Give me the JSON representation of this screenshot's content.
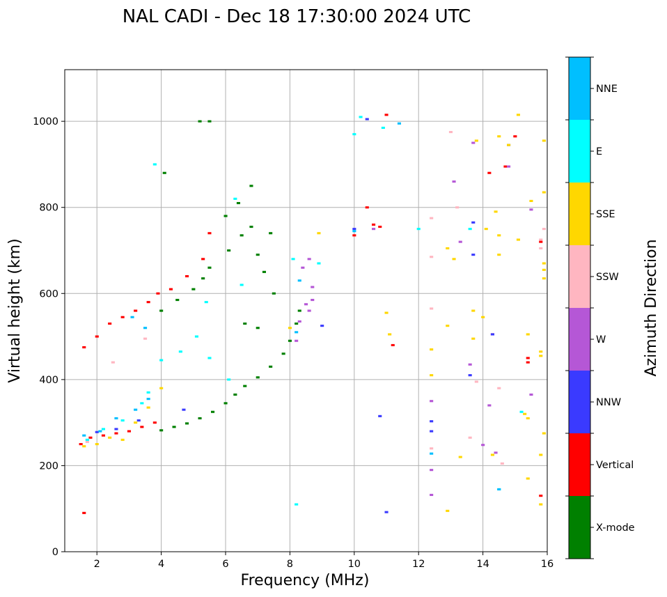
{
  "chart_data": {
    "type": "scatter",
    "title": "NAL CADI - Dec 18 17:30:00 2024 UTC",
    "xlabel": "Frequency (MHz)",
    "ylabel": "Virtual height (km)",
    "xlim": [
      1,
      16
    ],
    "ylim": [
      0,
      1120
    ],
    "xticks": [
      2,
      4,
      6,
      8,
      10,
      12,
      14,
      16
    ],
    "yticks": [
      0,
      200,
      400,
      600,
      800,
      1000
    ],
    "grid": true,
    "colorbar": {
      "label": "Azimuth Direction",
      "categories": [
        {
          "name": "X-mode",
          "color": "#008000"
        },
        {
          "name": "Vertical",
          "color": "#ff0000"
        },
        {
          "name": "NNW",
          "color": "#3a3aff"
        },
        {
          "name": "W",
          "color": "#b557d6"
        },
        {
          "name": "SSW",
          "color": "#ffb6c1"
        },
        {
          "name": "SSE",
          "color": "#ffd700"
        },
        {
          "name": "E",
          "color": "#00ffff"
        },
        {
          "name": "NNE",
          "color": "#00bfff"
        }
      ]
    },
    "series": [
      {
        "name": "X-mode",
        "points": [
          [
            4.0,
            282
          ],
          [
            4.4,
            290
          ],
          [
            4.8,
            298
          ],
          [
            5.2,
            310
          ],
          [
            5.6,
            325
          ],
          [
            6.0,
            345
          ],
          [
            6.3,
            365
          ],
          [
            6.6,
            385
          ],
          [
            7.0,
            405
          ],
          [
            7.4,
            430
          ],
          [
            7.8,
            460
          ],
          [
            8.0,
            490
          ],
          [
            8.2,
            530
          ],
          [
            8.3,
            560
          ],
          [
            4.0,
            560
          ],
          [
            4.5,
            585
          ],
          [
            5.0,
            610
          ],
          [
            5.3,
            635
          ],
          [
            5.5,
            660
          ],
          [
            6.1,
            700
          ],
          [
            6.5,
            735
          ],
          [
            6.8,
            755
          ],
          [
            7.0,
            690
          ],
          [
            7.2,
            650
          ],
          [
            7.5,
            600
          ],
          [
            6.8,
            850
          ],
          [
            6.4,
            810
          ],
          [
            6.0,
            780
          ],
          [
            5.5,
            1000
          ],
          [
            5.2,
            1000
          ],
          [
            4.1,
            880
          ],
          [
            7.4,
            740
          ],
          [
            6.6,
            530
          ],
          [
            7.0,
            520
          ]
        ]
      },
      {
        "name": "Vertical",
        "points": [
          [
            1.6,
            90
          ],
          [
            1.5,
            250
          ],
          [
            1.8,
            265
          ],
          [
            2.2,
            270
          ],
          [
            2.6,
            275
          ],
          [
            3.0,
            280
          ],
          [
            3.4,
            290
          ],
          [
            3.8,
            300
          ],
          [
            1.6,
            475
          ],
          [
            2.0,
            500
          ],
          [
            2.4,
            530
          ],
          [
            2.8,
            545
          ],
          [
            3.2,
            560
          ],
          [
            3.6,
            580
          ],
          [
            3.9,
            600
          ],
          [
            4.3,
            610
          ],
          [
            4.8,
            640
          ],
          [
            5.3,
            680
          ],
          [
            5.5,
            740
          ],
          [
            10.8,
            755
          ],
          [
            10.4,
            800
          ],
          [
            10.6,
            760
          ],
          [
            11.0,
            1015
          ],
          [
            11.2,
            480
          ],
          [
            14.3,
            505
          ],
          [
            14.2,
            880
          ],
          [
            14.7,
            895
          ],
          [
            15.0,
            965
          ],
          [
            15.4,
            440
          ],
          [
            15.4,
            450
          ],
          [
            15.8,
            130
          ],
          [
            15.8,
            720
          ],
          [
            10.0,
            735
          ]
        ]
      },
      {
        "name": "NNW",
        "points": [
          [
            2.0,
            278
          ],
          [
            2.6,
            285
          ],
          [
            3.3,
            305
          ],
          [
            4.7,
            330
          ],
          [
            9.0,
            525
          ],
          [
            10.0,
            750
          ],
          [
            10.4,
            1005
          ],
          [
            10.8,
            315
          ],
          [
            11.0,
            92
          ],
          [
            12.4,
            280
          ],
          [
            12.4,
            303
          ],
          [
            13.6,
            410
          ],
          [
            13.7,
            690
          ],
          [
            13.7,
            765
          ],
          [
            14.3,
            505
          ],
          [
            14.8,
            945
          ]
        ]
      },
      {
        "name": "W",
        "points": [
          [
            8.2,
            490
          ],
          [
            8.3,
            535
          ],
          [
            8.5,
            575
          ],
          [
            8.6,
            560
          ],
          [
            8.7,
            585
          ],
          [
            8.4,
            660
          ],
          [
            8.6,
            680
          ],
          [
            8.7,
            615
          ],
          [
            10.6,
            750
          ],
          [
            12.4,
            132
          ],
          [
            12.4,
            190
          ],
          [
            12.4,
            350
          ],
          [
            13.1,
            860
          ],
          [
            13.3,
            720
          ],
          [
            13.6,
            435
          ],
          [
            13.7,
            950
          ],
          [
            14.0,
            248
          ],
          [
            14.2,
            340
          ],
          [
            14.4,
            230
          ],
          [
            15.5,
            365
          ],
          [
            15.5,
            795
          ],
          [
            14.8,
            895
          ]
        ]
      },
      {
        "name": "SSW",
        "points": [
          [
            1.7,
            255
          ],
          [
            2.5,
            440
          ],
          [
            3.5,
            495
          ],
          [
            12.4,
            240
          ],
          [
            12.4,
            565
          ],
          [
            12.4,
            685
          ],
          [
            12.4,
            775
          ],
          [
            13.0,
            975
          ],
          [
            13.2,
            800
          ],
          [
            13.6,
            265
          ],
          [
            13.8,
            395
          ],
          [
            14.5,
            380
          ],
          [
            14.6,
            205
          ],
          [
            15.8,
            725
          ],
          [
            15.8,
            705
          ],
          [
            15.9,
            750
          ]
        ]
      },
      {
        "name": "SSE",
        "points": [
          [
            1.6,
            245
          ],
          [
            2.0,
            250
          ],
          [
            2.4,
            265
          ],
          [
            2.8,
            260
          ],
          [
            3.2,
            300
          ],
          [
            3.6,
            335
          ],
          [
            4.0,
            380
          ],
          [
            8.0,
            520
          ],
          [
            8.9,
            740
          ],
          [
            11.0,
            555
          ],
          [
            11.1,
            505
          ],
          [
            12.4,
            410
          ],
          [
            12.4,
            470
          ],
          [
            12.9,
            95
          ],
          [
            12.9,
            525
          ],
          [
            12.9,
            705
          ],
          [
            13.1,
            680
          ],
          [
            13.3,
            220
          ],
          [
            13.7,
            495
          ],
          [
            13.7,
            560
          ],
          [
            13.8,
            955
          ],
          [
            14.0,
            545
          ],
          [
            14.1,
            750
          ],
          [
            14.3,
            225
          ],
          [
            14.4,
            790
          ],
          [
            14.5,
            690
          ],
          [
            14.5,
            735
          ],
          [
            14.5,
            965
          ],
          [
            14.8,
            945
          ],
          [
            15.1,
            1015
          ],
          [
            15.1,
            725
          ],
          [
            15.3,
            320
          ],
          [
            15.4,
            170
          ],
          [
            15.4,
            310
          ],
          [
            15.4,
            505
          ],
          [
            15.5,
            815
          ],
          [
            15.8,
            110
          ],
          [
            15.8,
            225
          ],
          [
            15.8,
            455
          ],
          [
            15.8,
            465
          ],
          [
            15.9,
            275
          ],
          [
            15.9,
            635
          ],
          [
            15.9,
            655
          ],
          [
            15.9,
            670
          ],
          [
            15.9,
            835
          ],
          [
            15.9,
            955
          ]
        ]
      },
      {
        "name": "E",
        "points": [
          [
            1.7,
            260
          ],
          [
            2.2,
            285
          ],
          [
            2.8,
            305
          ],
          [
            3.4,
            345
          ],
          [
            3.6,
            370
          ],
          [
            4.0,
            445
          ],
          [
            4.6,
            465
          ],
          [
            5.1,
            500
          ],
          [
            5.5,
            450
          ],
          [
            6.1,
            400
          ],
          [
            5.4,
            580
          ],
          [
            6.5,
            620
          ],
          [
            6.3,
            820
          ],
          [
            8.2,
            110
          ],
          [
            8.1,
            680
          ],
          [
            8.9,
            670
          ],
          [
            10.0,
            970
          ],
          [
            10.2,
            1010
          ],
          [
            10.9,
            985
          ],
          [
            12.0,
            750
          ],
          [
            13.6,
            750
          ],
          [
            14.5,
            145
          ],
          [
            15.2,
            325
          ],
          [
            3.8,
            900
          ]
        ]
      },
      {
        "name": "NNE",
        "points": [
          [
            1.6,
            270
          ],
          [
            2.1,
            280
          ],
          [
            2.6,
            310
          ],
          [
            3.2,
            330
          ],
          [
            3.6,
            355
          ],
          [
            3.1,
            545
          ],
          [
            3.5,
            520
          ],
          [
            8.2,
            510
          ],
          [
            8.3,
            630
          ],
          [
            10.0,
            745
          ],
          [
            11.4,
            995
          ],
          [
            12.4,
            228
          ],
          [
            14.5,
            145
          ]
        ]
      }
    ]
  }
}
